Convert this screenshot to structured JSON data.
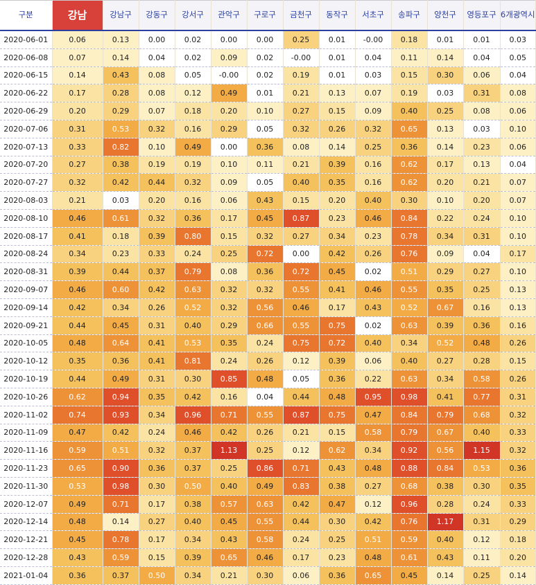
{
  "table": {
    "headers": [
      "구분",
      "강남",
      "강남구",
      "강동구",
      "강서구",
      "관악구",
      "구로구",
      "금천구",
      "동작구",
      "서초구",
      "송파구",
      "양천구",
      "영등포구",
      "6개광역시"
    ],
    "rows": [
      {
        "date": "2020-06-01",
        "values": [
          "0.06",
          "0.13",
          "0.00",
          "0.02",
          "0.00",
          "0.00",
          "0.25",
          "0.01",
          "-0.00",
          "0.18",
          "0.01",
          "0.01",
          "0.03"
        ]
      },
      {
        "date": "2020-06-08",
        "values": [
          "0.07",
          "0.14",
          "0.04",
          "0.02",
          "0.09",
          "0.02",
          "-0.00",
          "0.01",
          "0.04",
          "0.11",
          "0.14",
          "0.04",
          "0.05"
        ]
      },
      {
        "date": "2020-06-15",
        "values": [
          "0.14",
          "0.43",
          "0.08",
          "0.05",
          "-0.00",
          "0.02",
          "0.19",
          "0.01",
          "0.03",
          "0.15",
          "0.30",
          "0.06",
          "0.04"
        ]
      },
      {
        "date": "2020-06-22",
        "values": [
          "0.17",
          "0.28",
          "0.08",
          "0.12",
          "0.49",
          "0.01",
          "0.21",
          "0.13",
          "0.07",
          "0.19",
          "0.03",
          "0.31",
          "0.08"
        ]
      },
      {
        "date": "2020-06-29",
        "values": [
          "0.20",
          "0.29",
          "0.07",
          "0.18",
          "0.20",
          "0.10",
          "0.27",
          "0.15",
          "0.09",
          "0.40",
          "0.25",
          "0.08",
          "0.06"
        ]
      },
      {
        "date": "2020-07-06",
        "values": [
          "0.31",
          "0.53",
          "0.32",
          "0.16",
          "0.29",
          "0.05",
          "0.32",
          "0.26",
          "0.32",
          "0.65",
          "0.13",
          "0.03",
          "0.10"
        ]
      },
      {
        "date": "2020-07-13",
        "values": [
          "0.33",
          "0.82",
          "0.10",
          "0.49",
          "0.00",
          "0.36",
          "0.08",
          "0.14",
          "0.25",
          "0.36",
          "0.14",
          "0.23",
          "0.06"
        ]
      },
      {
        "date": "2020-07-20",
        "values": [
          "0.27",
          "0.38",
          "0.19",
          "0.19",
          "0.10",
          "0.11",
          "0.21",
          "0.39",
          "0.16",
          "0.62",
          "0.17",
          "0.13",
          "0.04"
        ]
      },
      {
        "date": "2020-07-27",
        "values": [
          "0.32",
          "0.42",
          "0.44",
          "0.32",
          "0.09",
          "0.05",
          "0.40",
          "0.35",
          "0.16",
          "0.62",
          "0.20",
          "0.21",
          "0.07"
        ]
      },
      {
        "date": "2020-08-03",
        "values": [
          "0.21",
          "0.03",
          "0.20",
          "0.16",
          "0.06",
          "0.43",
          "0.15",
          "0.20",
          "0.40",
          "0.30",
          "0.10",
          "0.20",
          "0.07"
        ]
      },
      {
        "date": "2020-08-10",
        "values": [
          "0.46",
          "0.61",
          "0.32",
          "0.36",
          "0.17",
          "0.45",
          "0.87",
          "0.23",
          "0.46",
          "0.84",
          "0.22",
          "0.24",
          "0.10"
        ]
      },
      {
        "date": "2020-08-17",
        "values": [
          "0.41",
          "0.18",
          "0.39",
          "0.80",
          "0.15",
          "0.32",
          "0.27",
          "0.34",
          "0.23",
          "0.78",
          "0.34",
          "0.31",
          "0.10"
        ]
      },
      {
        "date": "2020-08-24",
        "values": [
          "0.34",
          "0.23",
          "0.33",
          "0.24",
          "0.25",
          "0.72",
          "0.00",
          "0.42",
          "0.26",
          "0.76",
          "0.09",
          "0.04",
          "0.17"
        ]
      },
      {
        "date": "2020-08-31",
        "values": [
          "0.39",
          "0.44",
          "0.37",
          "0.79",
          "0.08",
          "0.36",
          "0.72",
          "0.45",
          "0.02",
          "0.51",
          "0.29",
          "0.27",
          "0.10"
        ]
      },
      {
        "date": "2020-09-07",
        "values": [
          "0.46",
          "0.60",
          "0.42",
          "0.63",
          "0.32",
          "0.32",
          "0.55",
          "0.41",
          "0.46",
          "0.55",
          "0.35",
          "0.25",
          "0.13"
        ]
      },
      {
        "date": "2020-09-14",
        "values": [
          "0.42",
          "0.34",
          "0.26",
          "0.52",
          "0.32",
          "0.56",
          "0.46",
          "0.17",
          "0.43",
          "0.52",
          "0.67",
          "0.16",
          "0.13"
        ]
      },
      {
        "date": "2020-09-21",
        "values": [
          "0.44",
          "0.45",
          "0.31",
          "0.40",
          "0.29",
          "0.66",
          "0.55",
          "0.75",
          "0.02",
          "0.63",
          "0.39",
          "0.36",
          "0.16"
        ]
      },
      {
        "date": "2020-10-05",
        "values": [
          "0.48",
          "0.64",
          "0.41",
          "0.53",
          "0.35",
          "0.24",
          "0.75",
          "0.72",
          "0.40",
          "0.34",
          "0.52",
          "0.48",
          "0.26"
        ]
      },
      {
        "date": "2020-10-12",
        "values": [
          "0.35",
          "0.36",
          "0.41",
          "0.81",
          "0.24",
          "0.26",
          "0.12",
          "0.39",
          "0.06",
          "0.40",
          "0.27",
          "0.28",
          "0.15"
        ]
      },
      {
        "date": "2020-10-19",
        "values": [
          "0.44",
          "0.49",
          "0.31",
          "0.30",
          "0.85",
          "0.48",
          "0.05",
          "0.36",
          "0.22",
          "0.63",
          "0.34",
          "0.58",
          "0.26"
        ]
      },
      {
        "date": "2020-10-26",
        "values": [
          "0.62",
          "0.94",
          "0.35",
          "0.42",
          "0.16",
          "0.04",
          "0.44",
          "0.48",
          "0.95",
          "0.98",
          "0.41",
          "0.77",
          "0.31"
        ]
      },
      {
        "date": "2020-11-02",
        "values": [
          "0.74",
          "0.93",
          "0.34",
          "0.96",
          "0.71",
          "0.55",
          "0.87",
          "0.75",
          "0.47",
          "0.84",
          "0.79",
          "0.68",
          "0.32"
        ]
      },
      {
        "date": "2020-11-09",
        "values": [
          "0.47",
          "0.42",
          "0.24",
          "0.46",
          "0.42",
          "0.26",
          "0.21",
          "0.15",
          "0.58",
          "0.79",
          "0.67",
          "0.40",
          "0.33"
        ]
      },
      {
        "date": "2020-11-16",
        "values": [
          "0.59",
          "0.51",
          "0.32",
          "0.37",
          "1.13",
          "0.25",
          "0.12",
          "0.62",
          "0.34",
          "0.92",
          "0.56",
          "1.15",
          "0.32"
        ]
      },
      {
        "date": "2020-11-23",
        "values": [
          "0.65",
          "0.90",
          "0.36",
          "0.37",
          "0.25",
          "0.86",
          "0.71",
          "0.43",
          "0.48",
          "0.88",
          "0.84",
          "0.53",
          "0.36"
        ]
      },
      {
        "date": "2020-11-30",
        "values": [
          "0.53",
          "0.98",
          "0.30",
          "0.50",
          "0.40",
          "0.49",
          "0.83",
          "0.38",
          "0.27",
          "0.68",
          "0.38",
          "0.30",
          "0.35"
        ]
      },
      {
        "date": "2020-12-07",
        "values": [
          "0.49",
          "0.71",
          "0.17",
          "0.38",
          "0.57",
          "0.63",
          "0.42",
          "0.47",
          "0.12",
          "0.96",
          "0.28",
          "0.24",
          "0.33"
        ]
      },
      {
        "date": "2020-12-14",
        "values": [
          "0.48",
          "0.14",
          "0.27",
          "0.40",
          "0.45",
          "0.55",
          "0.44",
          "0.30",
          "0.42",
          "0.76",
          "1.17",
          "0.31",
          "0.29"
        ]
      },
      {
        "date": "2020-12-21",
        "values": [
          "0.45",
          "0.78",
          "0.17",
          "0.34",
          "0.43",
          "0.58",
          "0.24",
          "0.25",
          "0.51",
          "0.59",
          "0.40",
          "0.12",
          "0.18"
        ]
      },
      {
        "date": "2020-12-28",
        "values": [
          "0.43",
          "0.59",
          "0.15",
          "0.39",
          "0.65",
          "0.46",
          "0.17",
          "0.23",
          "0.48",
          "0.61",
          "0.43",
          "0.11",
          "0.20"
        ]
      },
      {
        "date": "2021-01-04",
        "values": [
          "0.36",
          "0.37",
          "0.50",
          "0.34",
          "0.21",
          "0.30",
          "0.06",
          "0.36",
          "0.65",
          "0.45",
          "0.14",
          "0.25",
          "0.14"
        ]
      }
    ]
  },
  "colors": {
    "header_accent": "#d84139",
    "header_text": "#2b3fa0",
    "scale": [
      "#ffffff",
      "#fdf0c4",
      "#fbe3a3",
      "#f8d27e",
      "#f5c15c",
      "#f2ab45",
      "#ee9238",
      "#e9762f",
      "#df4f2a",
      "#d13525"
    ]
  }
}
